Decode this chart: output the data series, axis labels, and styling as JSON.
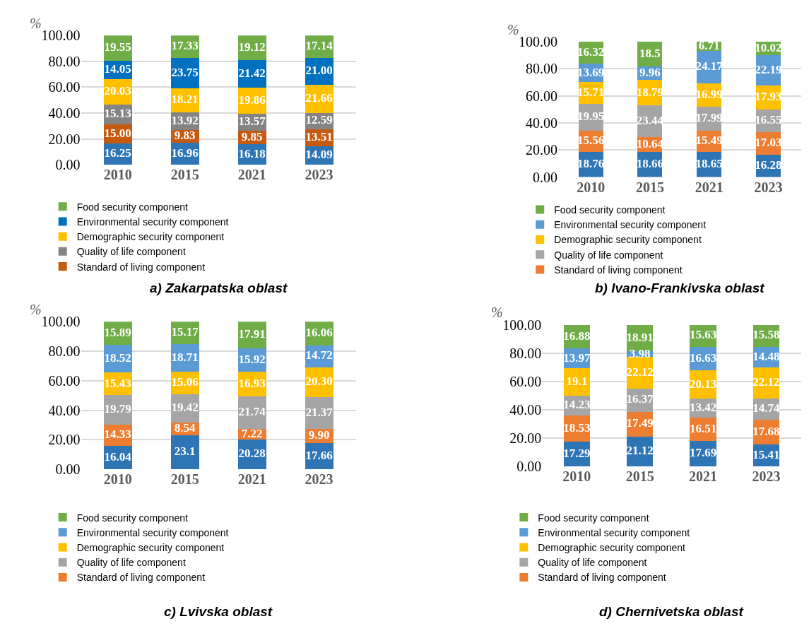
{
  "chart_data": [
    {
      "type": "bar",
      "stacked": true,
      "title": "a) Zakarpatska oblast",
      "ylabel": "%",
      "categories": [
        "2010",
        "2015",
        "2021",
        "2023"
      ],
      "ylim": [
        0,
        100
      ],
      "yticks": [
        {
          "value": 0,
          "label": "0.00"
        },
        {
          "value": 20,
          "label": "20.00"
        },
        {
          "value": 40,
          "label": "40.00"
        },
        {
          "value": 60,
          "label": "60.00"
        },
        {
          "value": 80,
          "label": "80.00"
        },
        {
          "value": 100,
          "label": "100.00"
        }
      ],
      "grid": "y",
      "legend": "bottom",
      "series": [
        {
          "color": "#2e75b6",
          "values": [
            16.25,
            16.96,
            16.18,
            14.09
          ],
          "value_labels": [
            "16.25",
            "16.96",
            "16.18",
            "14.09"
          ]
        },
        {
          "name": "Standard of living component",
          "color": "#c55a11",
          "values": [
            15.0,
            9.83,
            9.85,
            13.51
          ],
          "value_labels": [
            "15.00",
            "9.83",
            "9.85",
            "13.51"
          ]
        },
        {
          "name": "Quality of life component",
          "color": "#848484",
          "values": [
            15.13,
            13.92,
            13.57,
            12.59
          ],
          "value_labels": [
            "15.13",
            "13.92",
            "13.57",
            "12.59"
          ]
        },
        {
          "name": "Demographic security component",
          "color": "#ffc000",
          "values": [
            20.03,
            18.21,
            19.86,
            21.66
          ],
          "value_labels": [
            "20.03",
            "18.21",
            "19.86",
            "21.66"
          ]
        },
        {
          "name": "Environmental security component",
          "color": "#0070c0",
          "values": [
            14.05,
            23.75,
            21.42,
            21.0
          ],
          "value_labels": [
            "14.05",
            "23.75",
            "21.42",
            "21.00"
          ]
        },
        {
          "name": "Food security component",
          "color": "#70ad47",
          "values": [
            19.55,
            17.33,
            19.12,
            17.14
          ],
          "value_labels": [
            "19.55",
            "17.33",
            "19.12",
            "17.14"
          ]
        }
      ]
    },
    {
      "type": "bar",
      "stacked": true,
      "title": "b) Ivano-Frankivska oblast",
      "ylabel": "%",
      "categories": [
        "2010",
        "2015",
        "2021",
        "2023"
      ],
      "ylim": [
        0,
        100
      ],
      "yticks": [
        {
          "value": 0,
          "label": "0.00"
        },
        {
          "value": 20,
          "label": "20.00"
        },
        {
          "value": 40,
          "label": "40.00"
        },
        {
          "value": 60,
          "label": "60.00"
        },
        {
          "value": 80,
          "label": "80.00"
        },
        {
          "value": 100,
          "label": "100.00"
        }
      ],
      "grid": "y",
      "legend": "bottom",
      "series": [
        {
          "color": "#2e75b6",
          "values": [
            18.76,
            18.66,
            18.65,
            16.28
          ],
          "value_labels": [
            "18.76",
            "18.66",
            "18.65",
            "16.28"
          ]
        },
        {
          "name": "Standard of living component",
          "color": "#ed7d31",
          "values": [
            15.56,
            10.64,
            15.49,
            17.03
          ],
          "value_labels": [
            "15.56",
            "10.64",
            "15.49",
            "17.03"
          ]
        },
        {
          "name": "Quality of life component",
          "color": "#a5a5a5",
          "values": [
            19.95,
            23.44,
            17.99,
            16.55
          ],
          "value_labels": [
            "19.95",
            "23.44",
            "17.99",
            "16.55"
          ]
        },
        {
          "name": "Demographic security component",
          "color": "#ffc000",
          "values": [
            15.71,
            18.79,
            16.99,
            17.93
          ],
          "value_labels": [
            "15.71",
            "18.79",
            "16.99",
            "17.93"
          ]
        },
        {
          "name": "Environmental security component",
          "color": "#5b9bd5",
          "values": [
            13.69,
            9.96,
            24.17,
            22.19
          ],
          "value_labels": [
            "13.69",
            "9.96",
            "24.17",
            "22.19"
          ]
        },
        {
          "name": "Food security component",
          "color": "#70ad47",
          "values": [
            16.32,
            18.5,
            6.71,
            10.02
          ],
          "value_labels": [
            "16.32",
            "18.5",
            "6.71",
            "10.02"
          ]
        }
      ]
    },
    {
      "type": "bar",
      "stacked": true,
      "title": "c) Lvivska oblast",
      "ylabel": "%",
      "categories": [
        "2010",
        "2015",
        "2021",
        "2023"
      ],
      "ylim": [
        0,
        100
      ],
      "yticks": [
        {
          "value": 0,
          "label": "0.00"
        },
        {
          "value": 20,
          "label": "20.00"
        },
        {
          "value": 40,
          "label": "40.00"
        },
        {
          "value": 60,
          "label": "60.00"
        },
        {
          "value": 80,
          "label": "80.00"
        },
        {
          "value": 100,
          "label": "100.00"
        }
      ],
      "grid": "y",
      "legend": "bottom",
      "tick_labels": "y",
      "series": [
        {
          "color": "#2e75b6",
          "values": [
            16.04,
            23.1,
            20.28,
            17.66
          ],
          "value_labels": [
            "16.04",
            "23.1",
            "20.28",
            "17.66"
          ]
        },
        {
          "name": "Standard of living component",
          "color": "#ed7d31",
          "values": [
            14.33,
            8.54,
            7.22,
            9.9
          ],
          "value_labels": [
            "14.33",
            "8.54",
            "7.22",
            "9.90"
          ]
        },
        {
          "name": "Quality of life component",
          "color": "#a5a5a5",
          "values": [
            19.79,
            19.42,
            21.74,
            21.37
          ],
          "value_labels": [
            "19.79",
            "19.42",
            "21.74",
            "21.37"
          ]
        },
        {
          "name": "Demographic security component",
          "color": "#ffc000",
          "values": [
            15.43,
            15.06,
            16.93,
            20.3
          ],
          "value_labels": [
            "15.43",
            "15.06",
            "16.93",
            "20.30"
          ]
        },
        {
          "name": "Environmental security component",
          "color": "#5b9bd5",
          "values": [
            18.52,
            18.71,
            15.92,
            14.72
          ],
          "value_labels": [
            "18.52",
            "18.71",
            "15.92",
            "14.72"
          ]
        },
        {
          "name": "Food security component",
          "color": "#70ad47",
          "values": [
            15.89,
            15.17,
            17.91,
            16.06
          ],
          "value_labels": [
            "15.89",
            "15.17",
            "17.91",
            "16.06"
          ]
        }
      ]
    },
    {
      "type": "bar",
      "stacked": true,
      "title": "d) Chernivetska oblast",
      "ylabel": "%",
      "categories": [
        "2010",
        "2015",
        "2021",
        "2023"
      ],
      "ylim": [
        0,
        100
      ],
      "yticks": [
        {
          "value": 0,
          "label": "0.00"
        },
        {
          "value": 20,
          "label": "20.00"
        },
        {
          "value": 40,
          "label": "40.00"
        },
        {
          "value": 60,
          "label": "60.00"
        },
        {
          "value": 80,
          "label": "80.00"
        },
        {
          "value": 100,
          "label": "100.00"
        }
      ],
      "grid": "y",
      "legend": "bottom",
      "series": [
        {
          "color": "#2e75b6",
          "values": [
            17.29,
            21.12,
            17.69,
            15.41
          ],
          "value_labels": [
            "17.29",
            "21.12",
            "17.69",
            "15.41"
          ]
        },
        {
          "name": "Standard of living component",
          "color": "#ed7d31",
          "values": [
            18.53,
            17.49,
            16.51,
            17.68
          ],
          "value_labels": [
            "18.53",
            "17.49",
            "16.51",
            "17.68"
          ]
        },
        {
          "name": "Quality of life component",
          "color": "#a5a5a5",
          "values": [
            14.23,
            16.37,
            13.42,
            14.74
          ],
          "value_labels": [
            "14.23",
            "16.37",
            "13.42",
            "14.74"
          ]
        },
        {
          "name": "Demographic security component",
          "color": "#ffc000",
          "values": [
            19.1,
            22.12,
            20.13,
            22.12
          ],
          "value_labels": [
            "19.1",
            "22.12",
            "20.13",
            "22.12"
          ]
        },
        {
          "name": "Environmental security component",
          "color": "#5b9bd5",
          "values": [
            13.97,
            3.98,
            16.63,
            14.48
          ],
          "value_labels": [
            "13.97",
            "3.98",
            "16.63",
            "14.48"
          ]
        },
        {
          "name": "Food security component",
          "color": "#70ad47",
          "values": [
            16.88,
            18.91,
            15.63,
            15.58
          ],
          "value_labels": [
            "16.88",
            "18.91",
            "15.63",
            "15.58"
          ]
        }
      ]
    }
  ]
}
